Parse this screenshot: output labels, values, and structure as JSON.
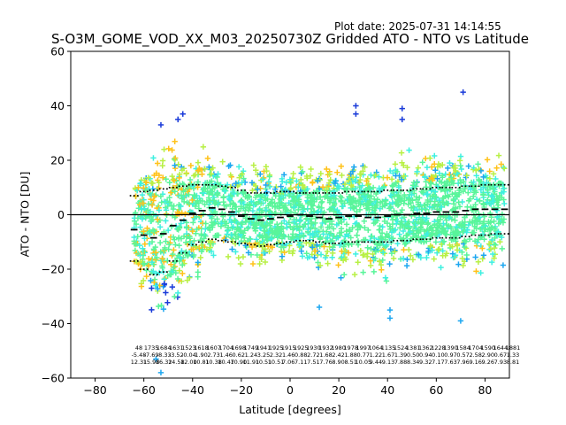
{
  "header": {
    "plot_date": "Plot date: 2025-07-31 14:14:55",
    "title": "S-O3M_GOME_VOD_XX_M03_20250730Z Gridded ATO - NTO vs Latitude"
  },
  "colors": {
    "density_scale": [
      "#1a3bd9",
      "#1da7f0",
      "#3ef0e0",
      "#59f59a",
      "#b8f045",
      "#ffc21a"
    ],
    "mean": "#000000",
    "std_band": "#000000",
    "zero_line": "#000000"
  },
  "chart_data": {
    "type": "scatter",
    "xlabel": "Latitude [degrees]",
    "ylabel": "ATO - NTO [DU]",
    "xlim": [
      -90,
      90
    ],
    "ylim": [
      -60,
      60
    ],
    "xticks": [
      -80,
      -60,
      -40,
      -20,
      0,
      20,
      40,
      60,
      80
    ],
    "yticks": [
      -60,
      -40,
      -20,
      0,
      20,
      40,
      60
    ],
    "grid": false,
    "zero_line": 0,
    "lat": [
      -64,
      -60,
      -56,
      -52,
      -48,
      -44,
      -40,
      -36,
      -32,
      -28,
      -24,
      -20,
      -16,
      -12,
      -8,
      -4,
      0,
      4,
      8,
      12,
      16,
      20,
      24,
      28,
      32,
      36,
      40,
      44,
      48,
      52,
      56,
      60,
      64,
      68,
      72,
      76,
      80,
      84,
      88
    ],
    "mean": [
      -5.5,
      -7.5,
      -8.5,
      -7,
      -4,
      -2,
      0.5,
      1.5,
      2.5,
      2,
      1,
      -0.5,
      -1.5,
      -2,
      -1.5,
      -1,
      -0.5,
      0,
      -0.5,
      -1,
      -1.5,
      -1,
      -0.5,
      -0.5,
      -1,
      -1,
      -0.5,
      0,
      0,
      0.5,
      0.5,
      1,
      1,
      1,
      1.5,
      2,
      2,
      2,
      2
    ],
    "plus_std": [
      7,
      8.5,
      9,
      9.5,
      10,
      10.5,
      11,
      11,
      11,
      10.5,
      10,
      9,
      8,
      8,
      8,
      8.5,
      8.5,
      8,
      8,
      8,
      8,
      8,
      8.5,
      8.5,
      8.5,
      8.5,
      9,
      9,
      9,
      9.5,
      9.5,
      10,
      10,
      10,
      10.5,
      10.5,
      11,
      11,
      11
    ],
    "minus_std": [
      -17,
      -20,
      -22,
      -21,
      -17,
      -14,
      -11,
      -10,
      -9,
      -9.5,
      -10,
      -10.5,
      -11,
      -11.5,
      -11,
      -10.5,
      -10,
      -9.5,
      -9.5,
      -10,
      -10.5,
      -10.5,
      -10,
      -10,
      -10,
      -10,
      -10,
      -9.5,
      -9.5,
      -9,
      -9,
      -8.5,
      -8.5,
      -8.5,
      -8,
      -7.5,
      -7.5,
      -7,
      -7
    ],
    "cluster_upper": [
      22,
      26,
      30,
      32,
      33,
      31,
      29,
      27,
      25,
      23,
      21,
      20,
      19,
      19,
      19,
      18,
      18,
      19,
      20,
      21,
      22,
      22,
      23,
      24,
      24,
      24,
      25,
      25,
      26,
      26,
      27,
      27,
      27,
      28,
      28,
      28,
      27,
      26,
      25
    ],
    "cluster_lower": [
      -22,
      -30,
      -44,
      -55,
      -48,
      -38,
      -28,
      -24,
      -22,
      -21,
      -21,
      -20,
      -20,
      -20,
      -20,
      -20,
      -20,
      -21,
      -22,
      -23,
      -24,
      -25,
      -26,
      -27,
      -27,
      -27,
      -26,
      -25,
      -25,
      -24,
      -24,
      -24,
      -24,
      -24,
      -24,
      -24,
      -24,
      -23,
      -22
    ],
    "outliers": [
      {
        "x": 71,
        "y": 45
      },
      {
        "x": 46,
        "y": 39
      },
      {
        "x": 46,
        "y": 35
      },
      {
        "x": 27,
        "y": 40
      },
      {
        "x": 27,
        "y": 37
      },
      {
        "x": -44,
        "y": 37
      },
      {
        "x": -46,
        "y": 35
      },
      {
        "x": -53,
        "y": 33
      },
      {
        "x": 41,
        "y": -38
      },
      {
        "x": 41,
        "y": -35
      },
      {
        "x": 12,
        "y": -34
      },
      {
        "x": 70,
        "y": -39
      },
      {
        "x": -53,
        "y": -58
      },
      {
        "x": -55,
        "y": -53
      }
    ],
    "bin_stats": {
      "counts": [
        "48",
        "1735",
        "1684",
        "1631",
        "1523",
        "1618",
        "1607",
        "1704",
        "1698",
        "1749",
        "1941",
        "1925",
        "1915",
        "1925",
        "1930",
        "1932",
        "1980",
        "1978",
        "1997",
        "1064",
        "1135",
        "1524",
        "1381",
        "1362",
        "1228",
        "1390",
        "1584",
        "1704",
        "1590",
        "1644",
        "1881"
      ],
      "means": [
        "-5.48",
        "-7.69",
        "-8.33",
        "-3.52",
        "-0.04",
        "1.90",
        "2.73",
        "1.46",
        "0.62",
        "1.24",
        "3.25",
        "2.32",
        "1.46",
        "0.88",
        "2.72",
        "1.68",
        "2.42",
        "1.88",
        "0.77",
        "1.22",
        "1.67",
        "1.39",
        "0.50",
        "0.94",
        "0.10",
        "0.97",
        "0.57",
        "2.58",
        "2.90",
        "0.67",
        "1.33"
      ],
      "stds": [
        "12.31",
        "15.98",
        "16.32",
        "14.58",
        "12.00",
        "10.81",
        "10.38",
        "10.47",
        "10.90",
        "11.91",
        "10.51",
        "10.51",
        "7.06",
        "7.11",
        "7.51",
        "7.76",
        "8.90",
        "8.51",
        "10.05",
        "9.44",
        "9.13",
        "7.88",
        "8.34",
        "9.32",
        "7.17",
        "7.63",
        "7.96",
        "9.16",
        "9.26",
        "7.93",
        "8.81"
      ]
    }
  }
}
